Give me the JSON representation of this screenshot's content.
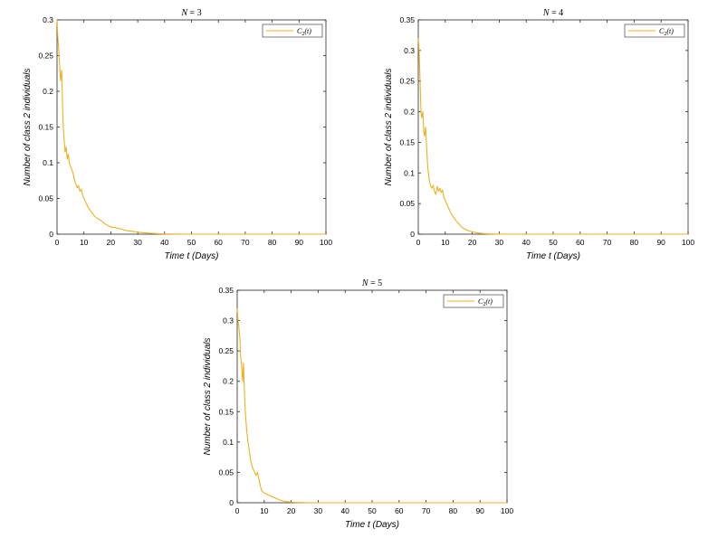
{
  "chart_data": [
    {
      "type": "line",
      "title": "N = 3",
      "xlabel": "Time t (Days)",
      "ylabel": "Number of class 2 individuals",
      "xlim": [
        0,
        100
      ],
      "ylim": [
        0,
        0.3
      ],
      "xticks": [
        0,
        10,
        20,
        30,
        40,
        50,
        60,
        70,
        80,
        90,
        100
      ],
      "yticks": [
        0,
        0.05,
        0.1,
        0.15,
        0.2,
        0.25,
        0.3
      ],
      "ytick_labels": [
        "0",
        "0.05",
        "0.1",
        "0.15",
        "0.2",
        "0.25",
        "0.3"
      ],
      "legend": "top-right",
      "grid": false,
      "series": [
        {
          "name": "C2(t)",
          "color": "#EDB120",
          "x": [
            0,
            0.3,
            0.6,
            1,
            1.3,
            1.7,
            2,
            2.3,
            2.7,
            3,
            3.4,
            3.8,
            4.2,
            4.6,
            5,
            5.5,
            6,
            6.5,
            7,
            7.5,
            8,
            8.5,
            9,
            9.5,
            10,
            11,
            12,
            13,
            14,
            15,
            16,
            17,
            18,
            19,
            20,
            22,
            24,
            26,
            28,
            30,
            32,
            34,
            36,
            38,
            40,
            45,
            50,
            60,
            70,
            80,
            90,
            100
          ],
          "y": [
            0.3,
            0.275,
            0.26,
            0.235,
            0.215,
            0.23,
            0.19,
            0.15,
            0.13,
            0.115,
            0.122,
            0.105,
            0.112,
            0.1,
            0.095,
            0.09,
            0.085,
            0.075,
            0.07,
            0.065,
            0.068,
            0.06,
            0.063,
            0.055,
            0.05,
            0.042,
            0.035,
            0.03,
            0.025,
            0.022,
            0.02,
            0.017,
            0.014,
            0.012,
            0.01,
            0.009,
            0.007,
            0.005,
            0.004,
            0.003,
            0.002,
            0.0015,
            0.001,
            0.0005,
            0.0003,
            0.0001,
            0,
            0,
            0,
            0,
            0,
            0
          ]
        }
      ]
    },
    {
      "type": "line",
      "title": "N = 4",
      "xlabel": "Time t (Days)",
      "ylabel": "Number of class 2 individuals",
      "xlim": [
        0,
        100
      ],
      "ylim": [
        0,
        0.35
      ],
      "xticks": [
        0,
        10,
        20,
        30,
        40,
        50,
        60,
        70,
        80,
        90,
        100
      ],
      "yticks": [
        0,
        0.05,
        0.1,
        0.15,
        0.2,
        0.25,
        0.3,
        0.35
      ],
      "ytick_labels": [
        "0",
        "0.05",
        "0.1",
        "0.15",
        "0.2",
        "0.25",
        "0.3",
        "0.35"
      ],
      "legend": "top-right",
      "grid": false,
      "series": [
        {
          "name": "C2(t)",
          "color": "#EDB120",
          "x": [
            0,
            0.3,
            0.6,
            1,
            1.3,
            1.7,
            2,
            2.3,
            2.7,
            3,
            3.5,
            4,
            4.5,
            5,
            5.5,
            6,
            6.5,
            7,
            7.5,
            8,
            8.5,
            9,
            9.5,
            10,
            11,
            12,
            13,
            14,
            15,
            16,
            17,
            18,
            19,
            20,
            22,
            24,
            26,
            28,
            30,
            35,
            40,
            50,
            60,
            70,
            80,
            90,
            100
          ],
          "y": [
            0.32,
            0.3,
            0.26,
            0.2,
            0.19,
            0.2,
            0.17,
            0.16,
            0.175,
            0.15,
            0.11,
            0.09,
            0.08,
            0.075,
            0.08,
            0.07,
            0.065,
            0.078,
            0.07,
            0.075,
            0.068,
            0.072,
            0.06,
            0.055,
            0.045,
            0.035,
            0.028,
            0.022,
            0.017,
            0.012,
            0.009,
            0.007,
            0.005,
            0.004,
            0.002,
            0.001,
            0.0005,
            0.0002,
            0.0001,
            0,
            0,
            0,
            0,
            0,
            0,
            0,
            0
          ]
        }
      ]
    },
    {
      "type": "line",
      "title": "N = 5",
      "xlabel": "Time t (Days)",
      "ylabel": "Number of class 2 individuals",
      "xlim": [
        0,
        100
      ],
      "ylim": [
        0,
        0.35
      ],
      "xticks": [
        0,
        10,
        20,
        30,
        40,
        50,
        60,
        70,
        80,
        90,
        100
      ],
      "yticks": [
        0,
        0.05,
        0.1,
        0.15,
        0.2,
        0.25,
        0.3,
        0.35
      ],
      "ytick_labels": [
        "0",
        "0.05",
        "0.1",
        "0.15",
        "0.2",
        "0.25",
        "0.3",
        "0.35"
      ],
      "legend": "top-right",
      "grid": false,
      "series": [
        {
          "name": "C2(t)",
          "color": "#EDB120",
          "x": [
            0,
            0.3,
            0.6,
            1,
            1.3,
            1.7,
            2,
            2.3,
            2.7,
            3,
            3.5,
            4,
            4.5,
            5,
            5.5,
            6,
            6.5,
            7,
            7.5,
            8,
            8.5,
            9,
            10,
            11,
            12,
            13,
            14,
            15,
            16,
            17,
            18,
            19,
            20,
            22,
            25,
            30,
            40,
            50,
            60,
            70,
            80,
            90,
            100
          ],
          "y": [
            0.32,
            0.3,
            0.29,
            0.27,
            0.24,
            0.22,
            0.2,
            0.23,
            0.18,
            0.15,
            0.12,
            0.1,
            0.085,
            0.07,
            0.06,
            0.055,
            0.05,
            0.045,
            0.05,
            0.04,
            0.03,
            0.02,
            0.016,
            0.014,
            0.012,
            0.01,
            0.008,
            0.006,
            0.004,
            0.003,
            0.002,
            0.0015,
            0.001,
            0.0005,
            0.0002,
            0,
            0,
            0,
            0,
            0,
            0,
            0,
            0
          ]
        }
      ]
    }
  ]
}
